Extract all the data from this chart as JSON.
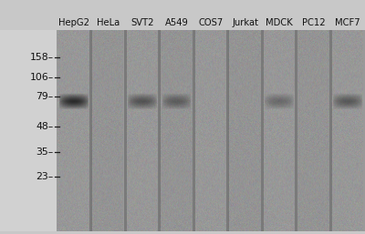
{
  "cell_lines": [
    "HepG2",
    "HeLa",
    "SVT2",
    "A549",
    "COS7",
    "Jurkat",
    "MDCK",
    "PC12",
    "MCF7"
  ],
  "mw_markers": [
    158,
    106,
    79,
    48,
    35,
    23
  ],
  "band_lanes": [
    0,
    2,
    3,
    6,
    8
  ],
  "band_intensity": [
    0.95,
    0.6,
    0.5,
    0.4,
    0.55
  ],
  "text_color": "#111111",
  "figure_bg": "#c8c8c8",
  "label_fontsize": 7.2,
  "marker_fontsize": 7.8,
  "fig_width": 4.0,
  "fig_height": 2.57,
  "dpi": 100,
  "mw_y": {
    "158": 0.865,
    "106": 0.765,
    "79": 0.67,
    "48": 0.52,
    "35": 0.395,
    "23": 0.275
  }
}
